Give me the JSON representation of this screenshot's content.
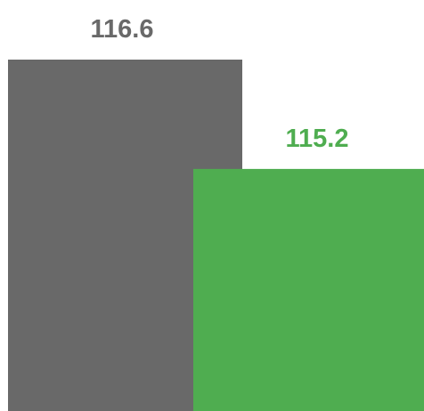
{
  "chart_data": {
    "type": "bar",
    "title": "",
    "xlabel": "",
    "ylabel": "",
    "categories": [
      "",
      ""
    ],
    "values": [
      116.6,
      115.2
    ],
    "data_labels": [
      "116.6",
      "115.2"
    ],
    "colors": [
      "#696969",
      "#4fad50"
    ],
    "label_colors": [
      "#696969",
      "#4fad50"
    ],
    "bar_overlap": true,
    "grid": false,
    "legend": "none"
  }
}
